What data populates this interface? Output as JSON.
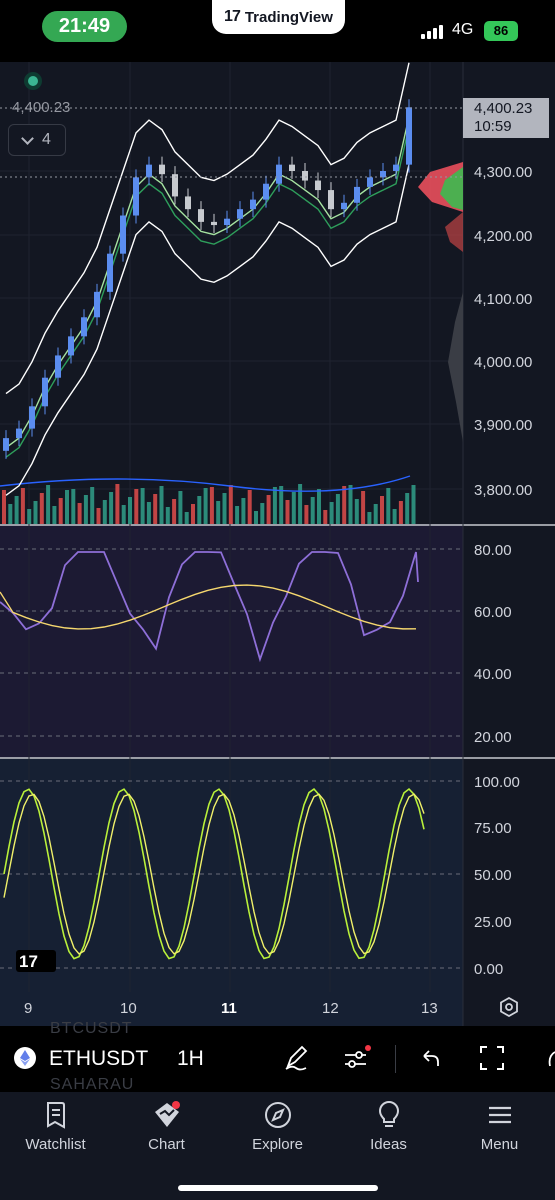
{
  "status_bar": {
    "time": "21:49",
    "app_name": "TradingView",
    "network": "4G",
    "battery": "86"
  },
  "chart": {
    "last_price": "4,400.23",
    "price_tag": {
      "price": "4,400.23",
      "countdown": "10:59"
    },
    "indicators_collapsed_count": "4",
    "price_axis": [
      "4,300.00",
      "4,200.00",
      "4,100.00",
      "4,000.00",
      "3,900.00",
      "3,800.00"
    ],
    "rsi_axis": [
      "80.00",
      "60.00",
      "40.00",
      "20.00"
    ],
    "stoch_axis": [
      "100.00",
      "75.00",
      "50.00",
      "25.00",
      "0.00"
    ],
    "time_axis": [
      {
        "label": "9",
        "bold": false
      },
      {
        "label": "10",
        "bold": false
      },
      {
        "label": "11",
        "bold": true
      },
      {
        "label": "12",
        "bold": false
      },
      {
        "label": "13",
        "bold": false
      }
    ],
    "colors": {
      "up": "#5b8def",
      "down": "#c7cacf",
      "bb": "#ffffff",
      "rsi": "#8e6fd8",
      "rsi_ma": "#f5d76e",
      "stoch_k": "#b9f03a",
      "stoch_d": "#f0f06a",
      "volume_up": "#2c8b7a",
      "volume_down": "#c24545"
    }
  },
  "chart_data": {
    "type": "line",
    "ylim": [
      3750,
      4460
    ],
    "series": [
      {
        "values": [
          3880,
          3895,
          3930,
          3975,
          4010,
          4040,
          4070,
          4110,
          4170,
          4230,
          4290,
          4310,
          4295,
          4260,
          4240,
          4220,
          4215,
          4225,
          4240,
          4255,
          4280,
          4310,
          4300,
          4285,
          4270,
          4240,
          4250,
          4275,
          4290,
          4300,
          4310,
          4400.23
        ]
      }
    ]
  },
  "symbol_bar": {
    "ghost_top": "BTCUSDT",
    "ghost_bottom": "SAHARAU",
    "symbol": "ETHUSDT",
    "interval": "1H"
  },
  "tabs": [
    {
      "label": "Watchlist",
      "icon": "watchlist-icon"
    },
    {
      "label": "Chart",
      "icon": "chart-icon"
    },
    {
      "label": "Explore",
      "icon": "compass-icon"
    },
    {
      "label": "Ideas",
      "icon": "lightbulb-icon"
    },
    {
      "label": "Menu",
      "icon": "hamburger-icon"
    }
  ]
}
